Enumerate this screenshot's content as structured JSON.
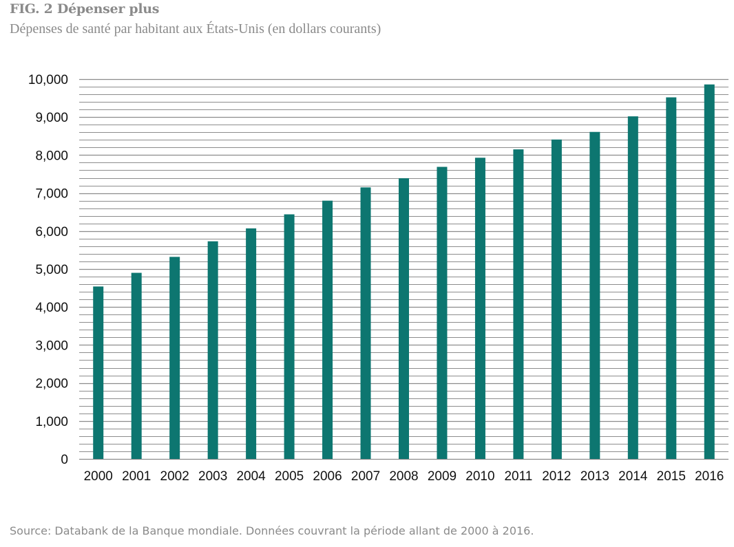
{
  "figure": {
    "title": "FIG. 2 Dépenser plus",
    "subtitle": "Dépenses de santé par habitant aux États-Unis (en dollars courants)",
    "source": "Source: Databank de la Banque mondiale. Données couvrant la période allant de 2000 à 2016."
  },
  "chart_data": {
    "type": "bar",
    "title": "",
    "xlabel": "",
    "ylabel": "",
    "categories": [
      "2000",
      "2001",
      "2002",
      "2003",
      "2004",
      "2005",
      "2006",
      "2007",
      "2008",
      "2009",
      "2010",
      "2011",
      "2012",
      "2013",
      "2014",
      "2015",
      "2016"
    ],
    "values": [
      4540,
      4900,
      5320,
      5730,
      6070,
      6440,
      6800,
      7150,
      7390,
      7690,
      7930,
      8150,
      8410,
      8610,
      9020,
      9520,
      9860
    ],
    "ylim": [
      0,
      10000
    ],
    "yticks": [
      0,
      1000,
      2000,
      3000,
      4000,
      5000,
      6000,
      7000,
      8000,
      9000,
      10000
    ],
    "ytick_labels": [
      "0",
      "1,000",
      "2,000",
      "3,000",
      "4,000",
      "5,000",
      "6,000",
      "7,000",
      "8,000",
      "9,000",
      "10,000"
    ],
    "minor_grid_step": 200,
    "grid": true,
    "legend": "none",
    "colors": {
      "bar": "#0d7670",
      "grid": "#8c8c8c",
      "axis_text": "#111111",
      "heading_text": "#8a8a8a"
    }
  }
}
